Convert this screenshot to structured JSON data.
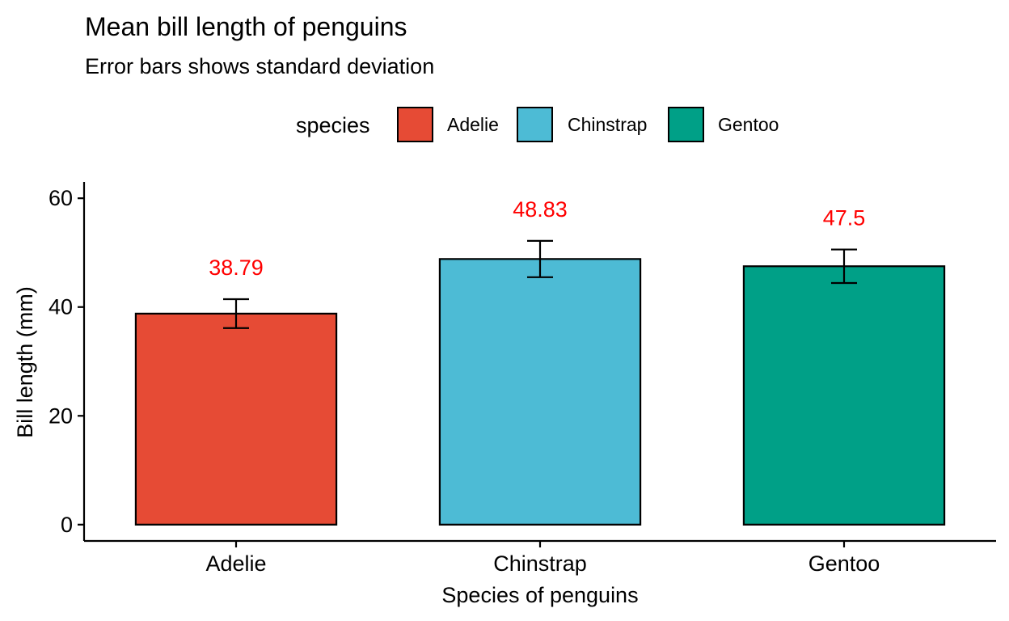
{
  "chart_data": {
    "type": "bar",
    "title": "Mean bill length of penguins",
    "subtitle": "Error bars shows standard deviation",
    "xlabel": "Species of penguins",
    "ylabel": "Bill length (mm)",
    "categories": [
      "Adelie",
      "Chinstrap",
      "Gentoo"
    ],
    "values": [
      38.79,
      48.83,
      47.5
    ],
    "value_labels": [
      "38.79",
      "48.83",
      "47.5"
    ],
    "error_sd": [
      2.66,
      3.34,
      3.08
    ],
    "ylim": [
      -3,
      63
    ],
    "yticks": [
      0,
      20,
      40,
      60
    ],
    "legend": {
      "title": "species",
      "position": "top",
      "entries": [
        "Adelie",
        "Chinstrap",
        "Gentoo"
      ]
    },
    "colors": [
      "#e64b35",
      "#4dbbd5",
      "#00a087"
    ],
    "value_label_color": "#ff0000",
    "grid": false
  }
}
